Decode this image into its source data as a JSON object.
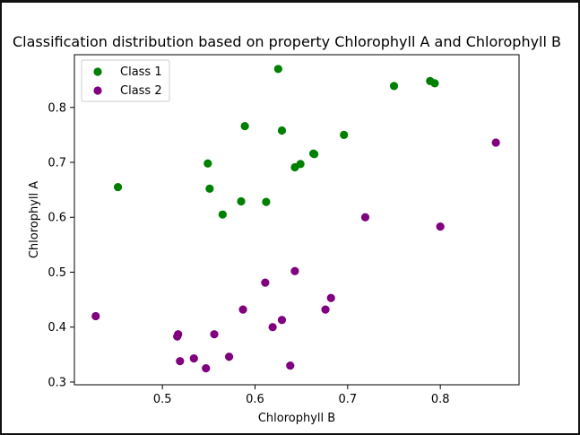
{
  "chart_data": {
    "type": "scatter",
    "title": "Classification distribution based on property Chlorophyll A and Chlorophyll B",
    "xlabel": "Chlorophyll B",
    "ylabel": "Chlorophyll A",
    "xlim": [
      0.405,
      0.885
    ],
    "ylim": [
      0.295,
      0.896
    ],
    "xticks": [
      0.5,
      0.6,
      0.7,
      0.8
    ],
    "xtick_labels": [
      "0.5",
      "0.6",
      "0.7",
      "0.8"
    ],
    "yticks": [
      0.3,
      0.4,
      0.5,
      0.6,
      0.7,
      0.8
    ],
    "ytick_labels": [
      "0.3",
      "0.4",
      "0.5",
      "0.6",
      "0.7",
      "0.8"
    ],
    "grid": false,
    "legend_position": "top-left",
    "series": [
      {
        "name": "Class 1",
        "color": "#008000",
        "points": [
          {
            "x": 0.452,
            "y": 0.655
          },
          {
            "x": 0.549,
            "y": 0.698
          },
          {
            "x": 0.551,
            "y": 0.652
          },
          {
            "x": 0.565,
            "y": 0.605
          },
          {
            "x": 0.585,
            "y": 0.629
          },
          {
            "x": 0.589,
            "y": 0.766
          },
          {
            "x": 0.612,
            "y": 0.628
          },
          {
            "x": 0.625,
            "y": 0.87
          },
          {
            "x": 0.629,
            "y": 0.758
          },
          {
            "x": 0.643,
            "y": 0.691
          },
          {
            "x": 0.649,
            "y": 0.697
          },
          {
            "x": 0.663,
            "y": 0.716
          },
          {
            "x": 0.664,
            "y": 0.715
          },
          {
            "x": 0.696,
            "y": 0.75
          },
          {
            "x": 0.75,
            "y": 0.839
          },
          {
            "x": 0.789,
            "y": 0.848
          },
          {
            "x": 0.794,
            "y": 0.844
          }
        ]
      },
      {
        "name": "Class 2",
        "color": "#800080",
        "points": [
          {
            "x": 0.428,
            "y": 0.42
          },
          {
            "x": 0.516,
            "y": 0.383
          },
          {
            "x": 0.517,
            "y": 0.387
          },
          {
            "x": 0.519,
            "y": 0.338
          },
          {
            "x": 0.534,
            "y": 0.343
          },
          {
            "x": 0.547,
            "y": 0.325
          },
          {
            "x": 0.556,
            "y": 0.387
          },
          {
            "x": 0.572,
            "y": 0.346
          },
          {
            "x": 0.587,
            "y": 0.432
          },
          {
            "x": 0.611,
            "y": 0.481
          },
          {
            "x": 0.619,
            "y": 0.4
          },
          {
            "x": 0.629,
            "y": 0.413
          },
          {
            "x": 0.638,
            "y": 0.33
          },
          {
            "x": 0.643,
            "y": 0.502
          },
          {
            "x": 0.676,
            "y": 0.432
          },
          {
            "x": 0.682,
            "y": 0.453
          },
          {
            "x": 0.719,
            "y": 0.6
          },
          {
            "x": 0.8,
            "y": 0.583
          },
          {
            "x": 0.86,
            "y": 0.736
          }
        ]
      }
    ]
  }
}
